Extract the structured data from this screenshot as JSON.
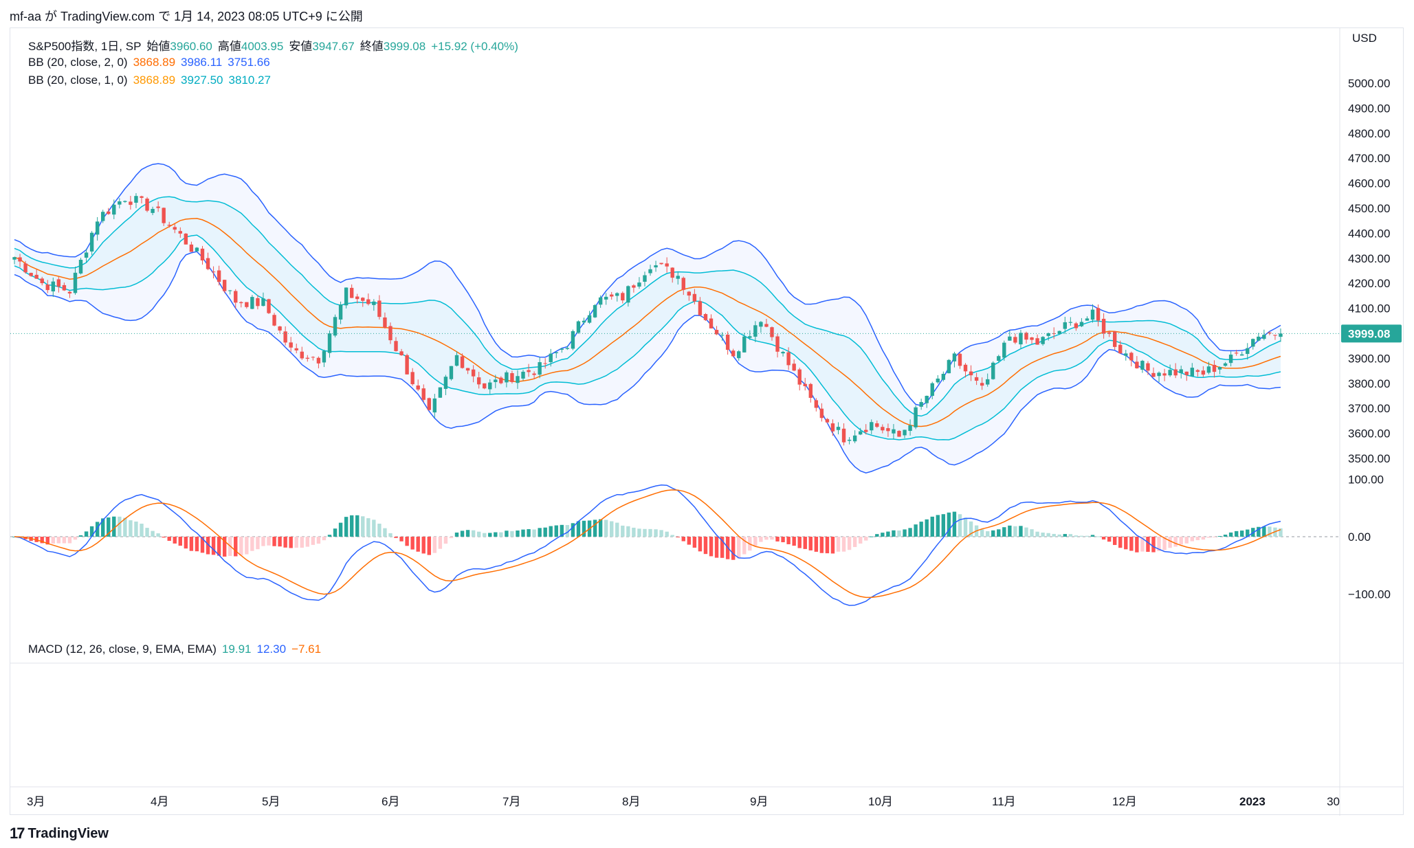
{
  "header": {
    "text": "mf-aa が TradingView.com で 1月 14, 2023 08:05 UTC+9 に公開"
  },
  "legend": {
    "main": {
      "symbol": "S&P500指数, 1日, SP",
      "open_label": "始値",
      "open": "3960.60",
      "high_label": "高値",
      "high": "4003.95",
      "low_label": "安値",
      "low": "3947.67",
      "close_label": "終値",
      "close": "3999.08",
      "change": "+15.92 (+0.40%)"
    },
    "bb2": {
      "label": "BB (20, close, 2, 0)",
      "basis": "3868.89",
      "upper": "3986.11",
      "lower": "3751.66"
    },
    "bb1": {
      "label": "BB (20, close, 1, 0)",
      "basis": "3868.89",
      "upper": "3927.50",
      "lower": "3810.27"
    },
    "macd": {
      "label": "MACD (12, 26, close, 9, EMA, EMA)",
      "hist": "19.91",
      "macd": "12.30",
      "signal": "−7.61"
    }
  },
  "price_axis": {
    "currency": "USD",
    "ticks": [
      "5000.00",
      "4900.00",
      "4800.00",
      "4700.00",
      "4600.00",
      "4500.00",
      "4400.00",
      "4300.00",
      "4200.00",
      "4100.00",
      "3900.00",
      "3800.00",
      "3700.00",
      "3600.00",
      "3500.00"
    ],
    "last_price": "3999.08"
  },
  "macd_axis": {
    "ticks": [
      "100.00",
      "0.00",
      "−100.00"
    ]
  },
  "time_axis": {
    "labels": [
      "3月",
      "4月",
      "5月",
      "6月",
      "7月",
      "8月",
      "9月",
      "10月",
      "11月",
      "12月",
      "2023",
      "30"
    ]
  },
  "footer": {
    "logo": "17",
    "brand": "TradingView"
  },
  "colors": {
    "up": "#26a69a",
    "down": "#ef5350",
    "bb2_band": "#2962ff",
    "bb1_band": "#00bcd4",
    "basis": "#ff6d00",
    "macd_line": "#2962ff",
    "signal_line": "#ff6d00",
    "band_fill": "#e3f2fd"
  },
  "chart_data": {
    "type": "candlestick",
    "title": "S&P500指数, 1日, SP",
    "ylim": [
      3450,
      5100
    ],
    "macd_ylim": [
      -120,
      105
    ],
    "close_series_approx": [
      [
        "2022-03-01",
        4305
      ],
      [
        "2022-03-07",
        4200
      ],
      [
        "2022-03-14",
        4170
      ],
      [
        "2022-03-21",
        4460
      ],
      [
        "2022-03-28",
        4545
      ],
      [
        "2022-04-04",
        4500
      ],
      [
        "2022-04-11",
        4390
      ],
      [
        "2022-04-18",
        4270
      ],
      [
        "2022-04-25",
        4130
      ],
      [
        "2022-05-02",
        4120
      ],
      [
        "2022-05-09",
        3930
      ],
      [
        "2022-05-16",
        3900
      ],
      [
        "2022-05-23",
        4160
      ],
      [
        "2022-05-31",
        4110
      ],
      [
        "2022-06-06",
        3900
      ],
      [
        "2022-06-13",
        3670
      ],
      [
        "2022-06-21",
        3910
      ],
      [
        "2022-06-27",
        3785
      ],
      [
        "2022-07-05",
        3830
      ],
      [
        "2022-07-11",
        3860
      ],
      [
        "2022-07-18",
        3960
      ],
      [
        "2022-07-25",
        4130
      ],
      [
        "2022-08-01",
        4145
      ],
      [
        "2022-08-08",
        4280
      ],
      [
        "2022-08-15",
        4230
      ],
      [
        "2022-08-22",
        4060
      ],
      [
        "2022-08-29",
        3925
      ],
      [
        "2022-09-06",
        4065
      ],
      [
        "2022-09-12",
        3875
      ],
      [
        "2022-09-19",
        3695
      ],
      [
        "2022-09-26",
        3585
      ],
      [
        "2022-10-03",
        3640
      ],
      [
        "2022-10-10",
        3585
      ],
      [
        "2022-10-17",
        3750
      ],
      [
        "2022-10-24",
        3900
      ],
      [
        "2022-10-31",
        3770
      ],
      [
        "2022-11-07",
        3990
      ],
      [
        "2022-11-14",
        3960
      ],
      [
        "2022-11-21",
        4025
      ],
      [
        "2022-11-28",
        4070
      ],
      [
        "2022-12-05",
        3935
      ],
      [
        "2022-12-12",
        3850
      ],
      [
        "2022-12-19",
        3845
      ],
      [
        "2022-12-27",
        3840
      ],
      [
        "2023-01-03",
        3895
      ],
      [
        "2023-01-09",
        3999
      ]
    ]
  }
}
